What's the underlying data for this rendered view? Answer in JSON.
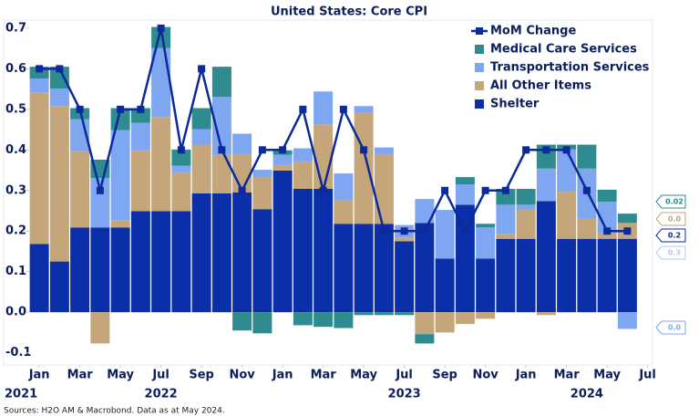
{
  "chart_data": {
    "type": "bar",
    "stacked": true,
    "title": "United States: Core CPI",
    "source": "Sources: H2O AM & Macrobond. Data as at May 2024.",
    "categories": [
      null,
      null,
      null,
      null,
      null,
      null,
      null,
      null,
      null,
      null,
      null,
      null,
      null,
      null,
      null,
      null,
      null,
      null,
      null,
      null,
      null,
      null,
      null,
      null,
      null,
      null,
      null,
      null,
      null,
      null
    ],
    "xticks": [
      {
        "value": 0.5,
        "label": "Jan"
      },
      {
        "value": 2.5,
        "label": "Mar"
      },
      {
        "value": 4.5,
        "label": "May"
      },
      {
        "value": 6.5,
        "label": "Jul"
      },
      {
        "value": 8.5,
        "label": "Sep"
      },
      {
        "value": 10.5,
        "label": "Nov"
      },
      {
        "value": 12.5,
        "label": "Jan"
      },
      {
        "value": 14.5,
        "label": "Mar"
      },
      {
        "value": 16.5,
        "label": "May"
      },
      {
        "value": 18.5,
        "label": "Jul"
      },
      {
        "value": 20.5,
        "label": "Sep"
      },
      {
        "value": 22.5,
        "label": "Nov"
      },
      {
        "value": 24.5,
        "label": "Jan"
      },
      {
        "value": 26.5,
        "label": "Mar"
      },
      {
        "value": 28.5,
        "label": "May"
      },
      {
        "value": 30.5,
        "label": "Jul"
      }
    ],
    "year_ticks": [
      {
        "value": -0.4,
        "label": "2021"
      },
      {
        "value": 6.5,
        "label": "2022"
      },
      {
        "value": 18.5,
        "label": "2023"
      },
      {
        "value": 27.5,
        "label": "2024"
      }
    ],
    "ylim": [
      -0.13,
      0.72
    ],
    "yticks": [
      -0.1,
      {
        "value": 0,
        "label": "0.0"
      },
      0.1,
      0.2,
      0.3,
      0.4,
      0.5,
      0.6,
      0.7
    ],
    "legend": "top-right",
    "series": [
      {
        "name": "Shelter",
        "color": "#0a2fa8",
        "values": [
          0.168,
          0.125,
          0.209,
          0.209,
          0.209,
          0.249,
          0.249,
          0.249,
          0.293,
          0.293,
          0.295,
          0.254,
          0.349,
          0.304,
          0.304,
          0.218,
          0.218,
          0.218,
          0.175,
          0.22,
          0.132,
          0.265,
          0.132,
          0.181,
          0.181,
          0.274,
          0.181,
          0.181,
          0.181,
          0.181
        ]
      },
      {
        "name": "All Other Items",
        "color": "#c4a67a",
        "values": [
          0.374,
          0.383,
          0.188,
          -0.077,
          0.018,
          0.15,
          0.232,
          0.096,
          0.12,
          0.095,
          0.095,
          0.079,
          0.014,
          0.068,
          0.159,
          0.059,
          0.274,
          0.172,
          0.009,
          -0.054,
          -0.05,
          -0.029,
          -0.016,
          0.012,
          0.071,
          -0.007,
          0.116,
          0.05,
          0.014,
          0.039
        ]
      },
      {
        "name": "Transportation Services",
        "color": "#7fa6f0",
        "values": [
          0.034,
          0.043,
          0.079,
          0.122,
          0.222,
          0.068,
          0.17,
          0.016,
          0.038,
          0.143,
          0.05,
          0.018,
          0.025,
          0.032,
          0.081,
          0.065,
          0.016,
          0.016,
          0.031,
          0.059,
          0.12,
          0.05,
          0.077,
          0.072,
          0.013,
          0.08,
          0.104,
          0.123,
          0.077,
          -0.041
        ]
      },
      {
        "name": "Medical Care Services",
        "color": "#2e8b8f",
        "values": [
          0.029,
          0.054,
          0.027,
          0.045,
          0.054,
          0.036,
          0.052,
          0.04,
          0.052,
          0.074,
          -0.045,
          -0.052,
          0.011,
          -0.032,
          -0.036,
          -0.039,
          -0.007,
          -0.007,
          -0.007,
          -0.023,
          0,
          0.018,
          0.009,
          0.039,
          0.039,
          0.059,
          0.012,
          0.059,
          0.03,
          0.023
        ]
      },
      {
        "name": "MoM Change",
        "color": "#0c2a9c",
        "type": "line",
        "values": [
          0.6,
          0.6,
          0.5,
          0.3,
          0.5,
          0.5,
          0.7,
          0.4,
          0.6,
          0.4,
          0.3,
          0.4,
          0.4,
          0.5,
          0.3,
          0.5,
          0.4,
          0.2,
          0.2,
          0.2,
          0.3,
          0.2,
          0.3,
          0.3,
          0.4,
          0.4,
          0.4,
          0.3,
          0.2,
          0.2
        ]
      }
    ],
    "end_labels": [
      {
        "text": "0.02",
        "color": "#2e8b8f"
      },
      {
        "text": "0.0",
        "color": "#c4a67a"
      },
      {
        "text": "0.2",
        "color": "#0c2a9c"
      },
      {
        "text": "0.3",
        "color": "#b8c8ee"
      },
      {
        "text": "0.0",
        "color": "#7fa6f0"
      }
    ]
  }
}
